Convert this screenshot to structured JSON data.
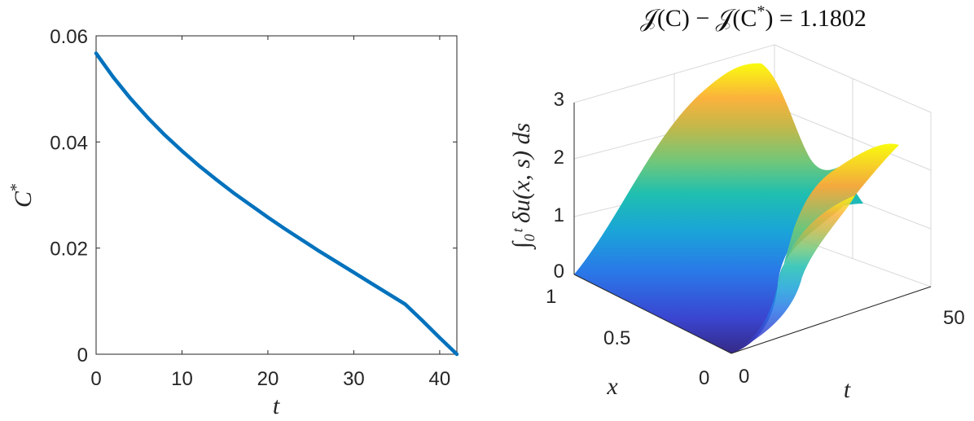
{
  "chart_data": [
    {
      "type": "line",
      "xlabel": "t",
      "ylabel": "C*",
      "xlim": [
        0,
        42
      ],
      "ylim": [
        0,
        0.06
      ],
      "xticks": [
        "0",
        "10",
        "20",
        "30",
        "40"
      ],
      "yticks": [
        "0",
        "0.02",
        "0.04",
        "0.06"
      ],
      "grid": false,
      "series": [
        {
          "color": "#0072BD",
          "x": [
            0,
            2,
            4,
            6,
            8,
            10,
            12,
            14,
            16,
            18,
            20,
            22,
            24,
            26,
            28,
            30,
            32,
            34,
            36,
            38,
            40,
            42
          ],
          "y": [
            0.0567,
            0.0522,
            0.0482,
            0.0446,
            0.0413,
            0.0383,
            0.0355,
            0.0329,
            0.0304,
            0.0281,
            0.0258,
            0.0236,
            0.0215,
            0.0194,
            0.0174,
            0.0154,
            0.0134,
            0.0114,
            0.0094,
            0.0063,
            0.0031,
            0.0
          ]
        }
      ]
    },
    {
      "type": "surface",
      "title": "𝒥(C) − 𝒥(C*) = 1.1802",
      "xlabel": "x",
      "ylabel": "t",
      "zlabel": "∫₀ᵗ δu(x, s) ds",
      "xlim": [
        0,
        1
      ],
      "ylim": [
        0,
        50
      ],
      "zlim": [
        0,
        3
      ],
      "xticks": [
        "0",
        "0.5",
        "1"
      ],
      "yticks": [
        "0",
        "50"
      ],
      "zticks": [
        "0",
        "1",
        "2",
        "3"
      ],
      "colormap": "parula",
      "peak_values": [
        3.5,
        2.55
      ],
      "grid": true
    }
  ],
  "left": {
    "xlabel": "t",
    "ylabel_base": "C",
    "ylabel_sup": "*",
    "xticks": [
      "0",
      "10",
      "20",
      "30",
      "40"
    ],
    "yticks": [
      "0",
      "0.02",
      "0.04",
      "0.06"
    ]
  },
  "right": {
    "title_main": "𝒥(C) − 𝒥(C",
    "title_sup": "*",
    "title_end": ") = 1.1802",
    "zlabel": "∫₀ᵗ δu(x, s) ds",
    "xlabel": "x",
    "ylabel": "t",
    "zticks": [
      "0",
      "1",
      "2",
      "3"
    ],
    "xticks": [
      "1",
      "0.5",
      "0"
    ],
    "yticks": [
      "0",
      "50"
    ]
  }
}
